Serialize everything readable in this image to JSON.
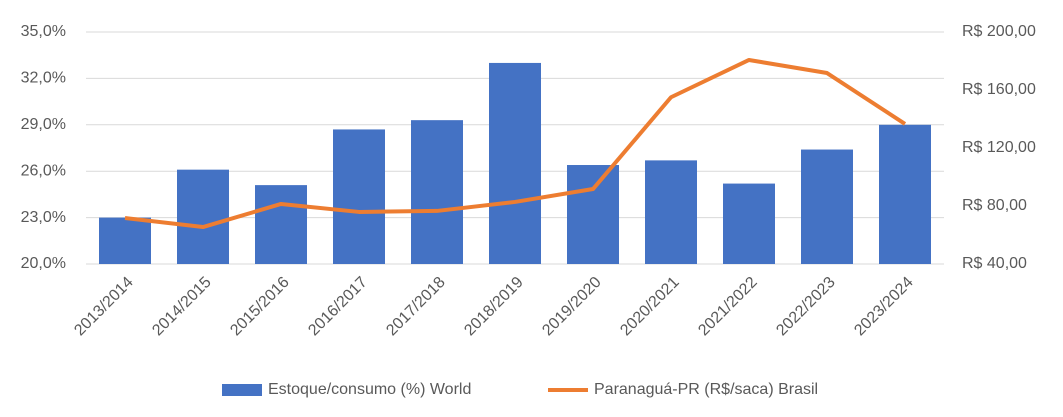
{
  "chart_data": {
    "type": "bar_line",
    "categories": [
      "2013/2014",
      "2014/2015",
      "2015/2016",
      "2016/2017",
      "2017/2018",
      "2018/2019",
      "2019/2020",
      "2020/2021",
      "2021/2022",
      "2022/2023",
      "2023/2024"
    ],
    "series": [
      {
        "name": "Estoque/consumo (%) World",
        "color": "#4472c4",
        "type": "bar",
        "values": [
          23.0,
          26.1,
          25.1,
          28.7,
          29.3,
          33.0,
          26.4,
          26.7,
          25.2,
          27.4,
          29.0
        ]
      },
      {
        "name": "Paranaguá-PR (R$/saca) Brasil",
        "color": "#ed7d31",
        "type": "line",
        "axis": "y2",
        "values": [
          71.7,
          65.5,
          81.4,
          75.9,
          76.6,
          82.8,
          91.7,
          155,
          180.7,
          171.7,
          136.6
        ]
      }
    ],
    "ylim": [
      20,
      35
    ],
    "yticks": [
      {
        "value": 20,
        "label": "20,0%"
      },
      {
        "value": 23,
        "label": "23,0%"
      },
      {
        "value": 26,
        "label": "26,0%"
      },
      {
        "value": 29,
        "label": "29,0%"
      },
      {
        "value": 32,
        "label": "32,0%"
      },
      {
        "value": 35,
        "label": "35,0%"
      }
    ],
    "y2lim": [
      40,
      200
    ],
    "y2ticks": [
      {
        "value": 40,
        "label": "R$ 40,00"
      },
      {
        "value": 80,
        "label": "R$ 80,00"
      },
      {
        "value": 120,
        "label": "R$ 120,00"
      },
      {
        "value": 160,
        "label": "R$ 160,00"
      },
      {
        "value": 200,
        "label": "R$ 200,00"
      }
    ],
    "grid": true,
    "legend": "bottom"
  }
}
